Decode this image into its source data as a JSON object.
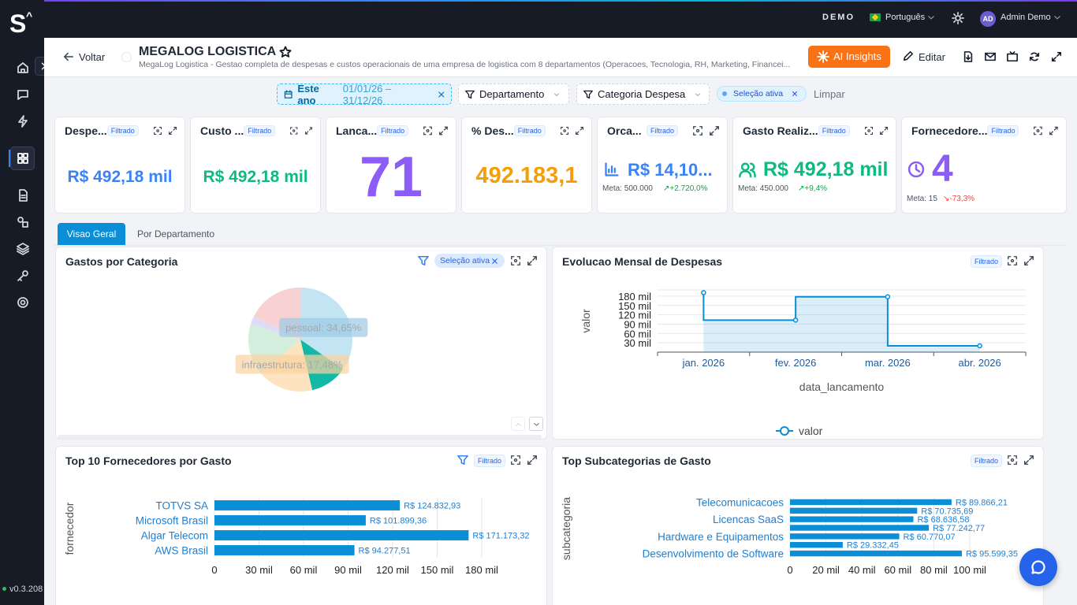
{
  "topbar": {
    "logo": "S",
    "logo_mark": "^",
    "env": "DEMO",
    "language": "Português",
    "avatar": "AD",
    "user": "Admin Demo"
  },
  "sidebar": {
    "version": "v0.3.208"
  },
  "header": {
    "back": "Voltar",
    "title": "MEGALOG LOGISTICA",
    "description": "MegaLog Logistica - Gestao completa de despesas e custos operacionais de uma empresa de logistica com 8 departamentos (Operacoes, Tecnologia, RH, Marketing, Financei...",
    "ai_button": "AI Insights",
    "edit_button": "Editar"
  },
  "filters": {
    "date_label": "Este ano",
    "date_range": "01/01/26 – 31/12/26",
    "department": "Departamento",
    "category": "Categoria Despesa",
    "active": "Seleção ativa",
    "clear": "Limpar"
  },
  "kpis": [
    {
      "title": "Despe...",
      "badge": "Filtrado",
      "value": "R$ 492,18 mil",
      "color": "#3b82f6"
    },
    {
      "title": "Custo ...",
      "badge": "Filtrado",
      "value": "R$ 492,18 mil",
      "color": "#10b981"
    },
    {
      "title": "Lanca...",
      "badge": "Filtrado",
      "value": 71,
      "color": "#8b5cf6"
    },
    {
      "title": "% Des...",
      "badge": "Filtrado",
      "value": "492.183,1",
      "color": "#f59e0b"
    },
    {
      "title": "Orca...",
      "badge": "Filtrado",
      "value": "R$ 14,10...",
      "color": "#3b82f6",
      "meta_label": "Meta:",
      "meta_value": "500.000",
      "delta": "+2.720,0%",
      "delta_color": "#16a34a"
    },
    {
      "title": "Gasto Realiz...",
      "badge": "Filtrado",
      "value": "R$ 492,18 mil",
      "color": "#10b981",
      "meta_label": "Meta:",
      "meta_value": "450.000",
      "delta": "+9,4%",
      "delta_color": "#16a34a"
    },
    {
      "title": "Fornecedore...",
      "badge": "Filtrado",
      "value": 4,
      "color": "#8b5cf6",
      "meta_label": "Meta:",
      "meta_value": "15",
      "delta": "-73,3%",
      "delta_color": "#ef4444"
    }
  ],
  "tabs": [
    "Visao Geral",
    "Por Departamento"
  ],
  "chart_data": [
    {
      "type": "pie",
      "title": "Gastos por Categoria",
      "badge": "Seleção ativa",
      "categories": [
        "pessoal",
        null,
        "infraestrutura",
        null,
        null,
        null
      ],
      "values": [
        34.65,
        11.7,
        17.48,
        16,
        2.5,
        17.67
      ],
      "value_labels": [
        "pessoal: 34,65%",
        null,
        "infraestrutura: 17,48%",
        null,
        null,
        null
      ],
      "colors": [
        "#c3e4f3",
        "#14b8a6",
        "#fde3c0",
        "#d3eedd",
        "#dedbf8",
        "#f8d2d2"
      ]
    },
    {
      "type": "line",
      "title": "Evolucao Mensal de Despesas",
      "badge": "Filtrado",
      "x_label": "data_lancamento",
      "y_label": "valor",
      "step": "start",
      "area": true,
      "grid": true,
      "categories": [
        "jan. 2026",
        "fev. 2026",
        "mar. 2026",
        "abr. 2026"
      ],
      "series": [
        {
          "name": "valor",
          "color": "#0a8fd6",
          "values": [
            191000,
            103000,
            178000,
            20180
          ]
        }
      ],
      "ylim": [
        0,
        200000
      ],
      "yticks": [
        {
          "value": 30000,
          "label": "30 mil"
        },
        {
          "value": 60000,
          "label": "60 mil"
        },
        {
          "value": 90000,
          "label": "90 mil"
        },
        {
          "value": 120000,
          "label": "120 mil"
        },
        {
          "value": 150000,
          "label": "150 mil"
        },
        {
          "value": 180000,
          "label": "180 mil"
        }
      ]
    },
    {
      "type": "bar",
      "orientation": "horizontal",
      "title": "Top 10 Fornecedores por Gasto",
      "badge": "Filtrado",
      "y_label": "fornecedor",
      "color": "#0a8fd6",
      "grid": true,
      "categories": [
        "TOTVS SA",
        "Microsoft Brasil",
        "Algar Telecom",
        "AWS Brasil"
      ],
      "values": [
        124832.93,
        101899.36,
        171173.32,
        94277.51
      ],
      "value_labels": [
        "R$ 124.832,93",
        "R$ 101.899,36",
        "R$ 171.173,32",
        "R$ 94.277,51"
      ],
      "xlim": [
        0,
        180000
      ],
      "xticks": [
        0,
        {
          "value": 30000,
          "label": "30 mil"
        },
        {
          "value": 60000,
          "label": "60 mil"
        },
        {
          "value": 90000,
          "label": "90 mil"
        },
        {
          "value": 120000,
          "label": "120 mil"
        },
        {
          "value": 150000,
          "label": "150 mil"
        },
        {
          "value": 180000,
          "label": "180 mil"
        }
      ]
    },
    {
      "type": "bar",
      "orientation": "horizontal",
      "title": "Top Subcategorias de Gasto",
      "badge": "Filtrado",
      "y_label": "subcategoria",
      "color": "#0a8fd6",
      "grid": true,
      "categories": [
        "Telecomunicacoes",
        null,
        "Licencas SaaS",
        null,
        "Hardware e Equipamentos",
        null,
        "Desenvolvimento de Software"
      ],
      "values": [
        89866.21,
        70735.69,
        68636.58,
        77242.77,
        60770.07,
        29332.45,
        95599.35
      ],
      "value_labels": [
        "R$ 89.866,21",
        "R$ 70.735,69",
        "R$ 68.636,58",
        "R$ 77.242,77",
        "R$ 60.770,07",
        "R$ 29.332,45",
        "R$ 95.599,35"
      ],
      "xlim": [
        0,
        100000
      ],
      "xticks": [
        0,
        {
          "value": 20000,
          "label": "20 mil"
        },
        {
          "value": 40000,
          "label": "40 mil"
        },
        {
          "value": 60000,
          "label": "60 mil"
        },
        {
          "value": 80000,
          "label": "80 mil"
        },
        {
          "value": 100000,
          "label": "100 mil"
        }
      ]
    }
  ]
}
